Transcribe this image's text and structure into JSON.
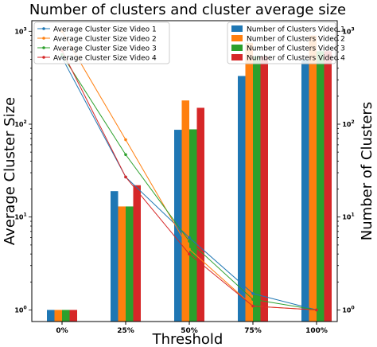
{
  "chart_data": {
    "type": "bar",
    "title": "Number of clusters and cluster average size",
    "xlabel": "Threshold",
    "ylabel_left": "Average Cluster Size",
    "ylabel_right": "Number of Clusters",
    "categories": [
      "0%",
      "25%",
      "50%",
      "75%",
      "100%"
    ],
    "y_scale": "log",
    "left_ylim": [
      0.75,
      1300
    ],
    "right_ylim": [
      0.75,
      1300
    ],
    "left_yticks": [
      "10^0",
      "10^1",
      "10^2",
      "10^3"
    ],
    "right_yticks": [
      "10^0",
      "10^1",
      "10^2",
      "10^3"
    ],
    "grid": false,
    "legend_left": "top-left",
    "legend_right": "top-right",
    "line_series": [
      {
        "name": "Average Cluster Size Video 1",
        "color": "#1f77b4",
        "values": [
          520,
          27,
          6,
          1.5,
          1.0
        ]
      },
      {
        "name": "Average Cluster Size Video 2",
        "color": "#ff7f0e",
        "values": [
          1000,
          68,
          4.5,
          1.1,
          1.0
        ]
      },
      {
        "name": "Average Cluster Size Video 3",
        "color": "#2ca02c",
        "values": [
          560,
          47,
          5.5,
          1.3,
          1.0
        ]
      },
      {
        "name": "Average Cluster Size Video 4",
        "color": "#d62728",
        "values": [
          620,
          27,
          4,
          1.1,
          1.0
        ]
      }
    ],
    "bar_series": [
      {
        "name": "Number of Clusters Video 1",
        "color": "#1f77b4",
        "values": [
          1,
          19,
          87,
          330,
          500
        ]
      },
      {
        "name": "Number of Clusters Video 2",
        "color": "#ff7f0e",
        "values": [
          1,
          13,
          180,
          750,
          900
        ]
      },
      {
        "name": "Number of Clusters Video 3",
        "color": "#2ca02c",
        "values": [
          1,
          13,
          88,
          540,
          610
        ]
      },
      {
        "name": "Number of Clusters Video 4",
        "color": "#d62728",
        "values": [
          1,
          22,
          150,
          540,
          610
        ]
      }
    ]
  }
}
